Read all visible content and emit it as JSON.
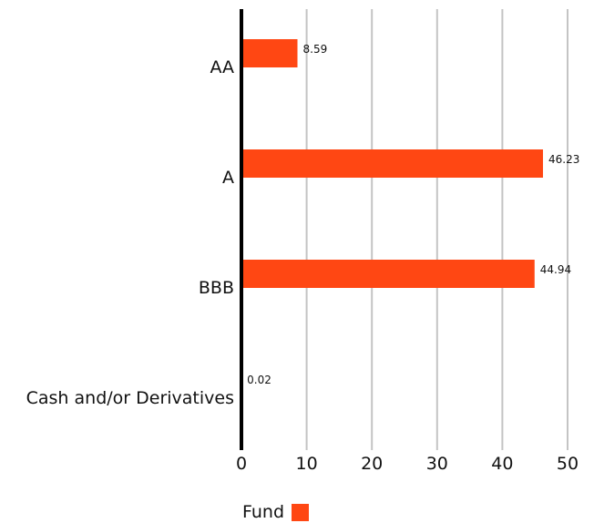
{
  "chart_data": {
    "type": "bar",
    "orientation": "horizontal",
    "categories": [
      "AA",
      "A",
      "BBB",
      "Cash and/or Derivatives"
    ],
    "series": [
      {
        "name": "Fund",
        "values": [
          8.59,
          46.23,
          44.94,
          0.02
        ]
      }
    ],
    "data_labels": [
      "8.59",
      "46.23",
      "44.94",
      "0.02"
    ],
    "xlim": [
      0,
      50
    ],
    "xticks": [
      "0",
      "10",
      "20",
      "30",
      "40",
      "50"
    ],
    "grid": "vertical",
    "legend_position": "bottom",
    "bar_color": "#ff4713"
  },
  "legend": {
    "label": "Fund"
  }
}
